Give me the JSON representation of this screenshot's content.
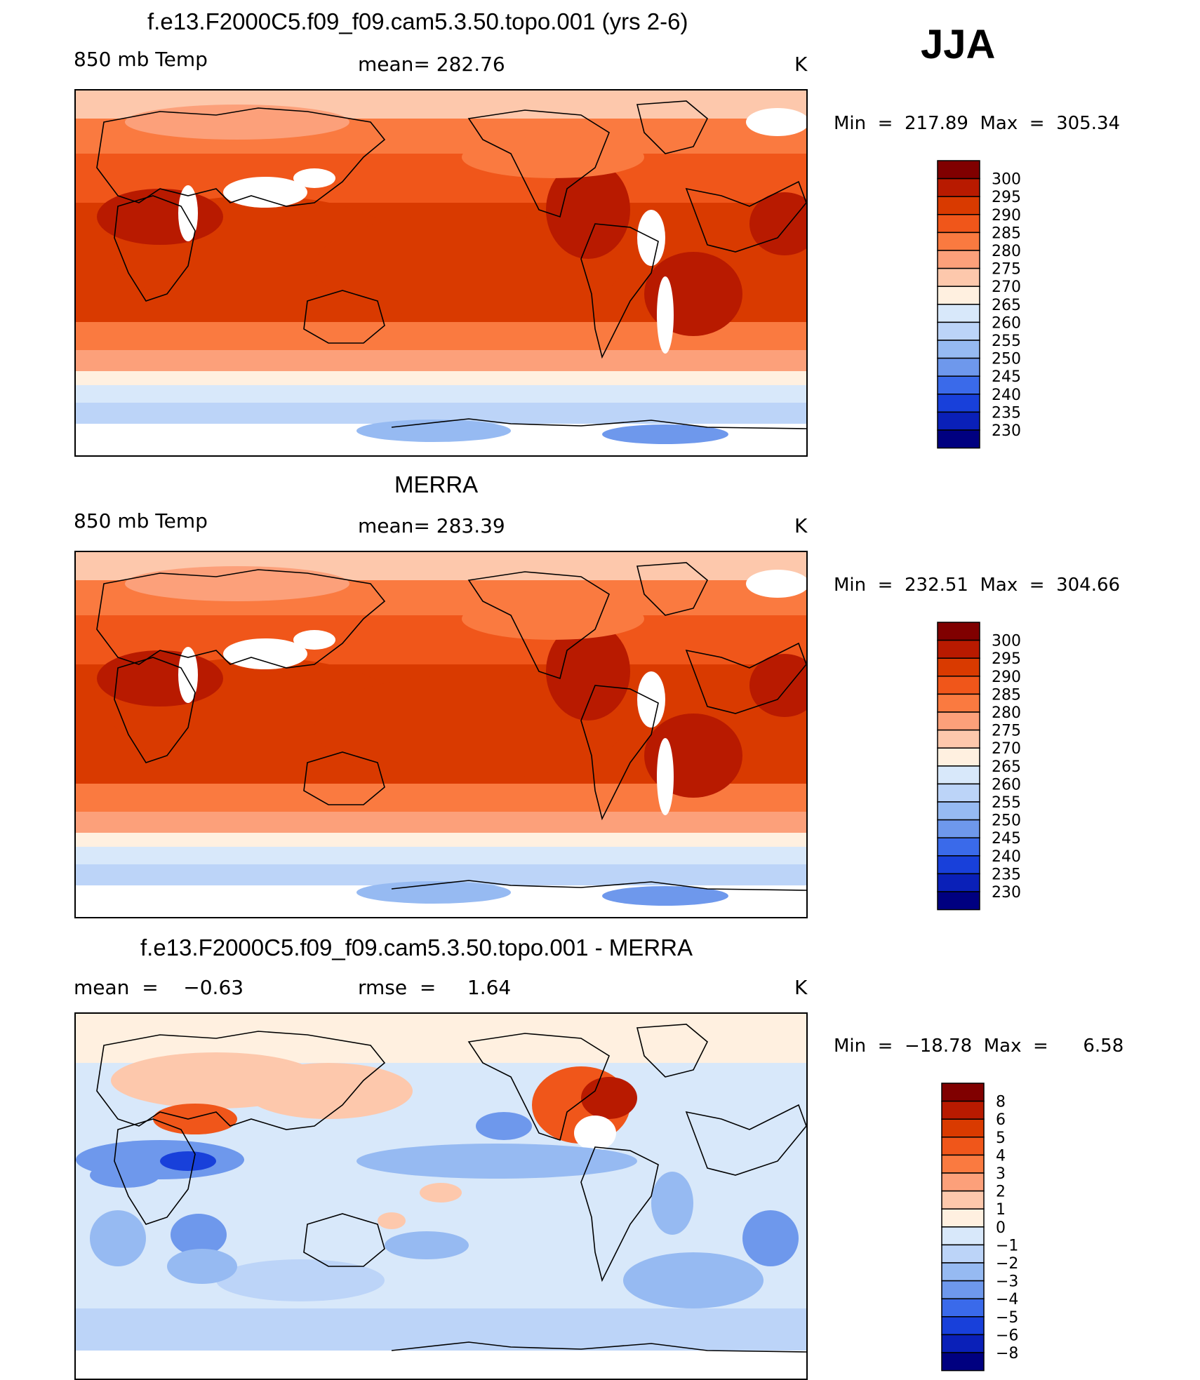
{
  "season": "JJA",
  "panels": [
    {
      "title": "f.e13.F2000C5.f09_f09.cam5.3.50.topo.001 (yrs 2-6)",
      "left_label": "850 mb Temp",
      "center_label": "mean= 282.76",
      "units": "K",
      "minmax": "Min  =  217.89  Max  =  305.34",
      "variant": "model"
    },
    {
      "title": "MERRA",
      "left_label": "850 mb Temp",
      "center_label": "mean= 283.39",
      "units": "K",
      "minmax": "Min  =  232.51  Max  =  304.66",
      "variant": "obs"
    },
    {
      "title": "f.e13.F2000C5.f09_f09.cam5.3.50.topo.001 - MERRA",
      "left_label": "mean  =    −0.63",
      "center_label": "rmse  =     1.64",
      "units": "K",
      "minmax": "Min  =  −18.78  Max  =      6.58",
      "variant": "diff"
    }
  ],
  "colorbars": [
    {
      "levels": [
        "300",
        "295",
        "290",
        "285",
        "280",
        "275",
        "270",
        "265",
        "260",
        "255",
        "250",
        "245",
        "240",
        "235",
        "230"
      ],
      "colors": [
        "#800000",
        "#b81a00",
        "#d93a00",
        "#f0561a",
        "#fa7a40",
        "#fca07a",
        "#fdc8ac",
        "#fff0e0",
        "#d8e8fa",
        "#bcd4f8",
        "#96baf2",
        "#6e98ec",
        "#3a6aea",
        "#1840da",
        "#0a20b8",
        "#000080"
      ]
    },
    {
      "levels": [
        "300",
        "295",
        "290",
        "285",
        "280",
        "275",
        "270",
        "265",
        "260",
        "255",
        "250",
        "245",
        "240",
        "235",
        "230"
      ],
      "colors": [
        "#800000",
        "#b81a00",
        "#d93a00",
        "#f0561a",
        "#fa7a40",
        "#fca07a",
        "#fdc8ac",
        "#fff0e0",
        "#d8e8fa",
        "#bcd4f8",
        "#96baf2",
        "#6e98ec",
        "#3a6aea",
        "#1840da",
        "#0a20b8",
        "#000080"
      ]
    },
    {
      "levels": [
        "8",
        "6",
        "5",
        "4",
        "3",
        "2",
        "1",
        "0",
        "−1",
        "−2",
        "−3",
        "−4",
        "−5",
        "−6",
        "−8"
      ],
      "colors": [
        "#800000",
        "#b81a00",
        "#d93a00",
        "#f0561a",
        "#fa7a40",
        "#fca07a",
        "#fdc8ac",
        "#fff0e0",
        "#d8e8fa",
        "#bcd4f8",
        "#96baf2",
        "#6e98ec",
        "#3a6aea",
        "#1840da",
        "#0a20b8",
        "#000080"
      ]
    }
  ],
  "chart_data": [
    {
      "type": "heatmap",
      "title": "f.e13.F2000C5.f09_f09.cam5.3.50.topo.001 (yrs 2-6)",
      "variable": "850 mb Temp",
      "units": "K",
      "mean": 282.76,
      "min": 217.89,
      "max": 305.34,
      "contour_levels": [
        230,
        235,
        240,
        245,
        250,
        255,
        260,
        265,
        270,
        275,
        280,
        285,
        290,
        295,
        300
      ]
    },
    {
      "type": "heatmap",
      "title": "MERRA",
      "variable": "850 mb Temp",
      "units": "K",
      "mean": 283.39,
      "min": 232.51,
      "max": 304.66,
      "contour_levels": [
        230,
        235,
        240,
        245,
        250,
        255,
        260,
        265,
        270,
        275,
        280,
        285,
        290,
        295,
        300
      ]
    },
    {
      "type": "heatmap",
      "title": "f.e13.F2000C5.f09_f09.cam5.3.50.topo.001 - MERRA",
      "units": "K",
      "mean": -0.63,
      "rmse": 1.64,
      "min": -18.78,
      "max": 6.58,
      "contour_levels": [
        -8,
        -6,
        -5,
        -4,
        -3,
        -2,
        -1,
        0,
        1,
        2,
        3,
        4,
        5,
        6,
        8
      ]
    }
  ]
}
